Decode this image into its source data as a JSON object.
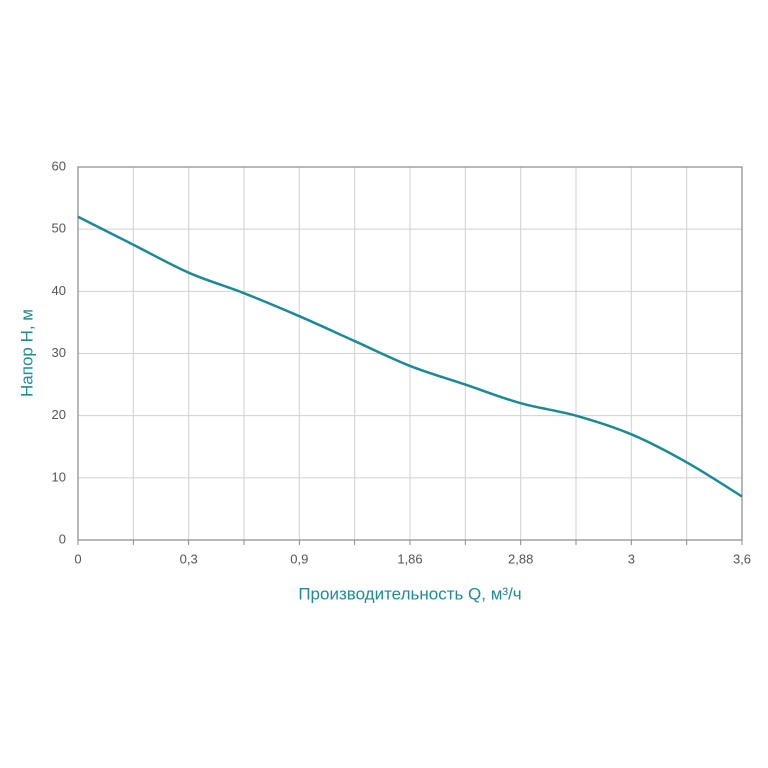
{
  "chart_data": {
    "type": "line",
    "x_label": "Производительность Q, м³/ч",
    "y_label": "Напор H, м",
    "categories": [
      "0",
      null,
      "0,3",
      null,
      "0,9",
      null,
      "1,86",
      null,
      "2,88",
      null,
      "3",
      null,
      "3,6"
    ],
    "series": [
      {
        "name": "H",
        "color": "#1b8996",
        "values": [
          52,
          47.5,
          43,
          39.7,
          36,
          32,
          28,
          25,
          22,
          20,
          17,
          12.5,
          7
        ]
      }
    ],
    "ylim": [
      0,
      60
    ],
    "yticks": [
      0,
      10,
      20,
      30,
      40,
      50,
      60
    ],
    "grid": true
  }
}
